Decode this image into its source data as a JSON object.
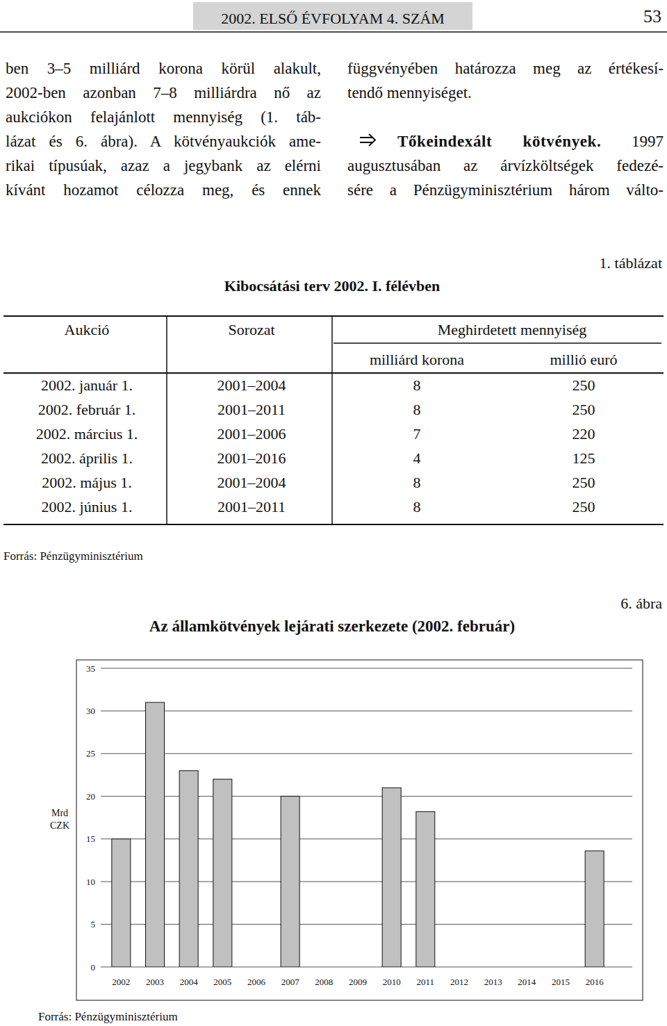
{
  "header": {
    "journal": "2002. ELSŐ ÉVFOLYAM 4. SZÁM",
    "page": "53"
  },
  "left_column": [
    "ben 3–5 milliárd korona körül alakult,",
    "2002-ben azonban 7–8 milliárdra nő az",
    "aukciókon felajánlott mennyiség (1. táb-",
    "lázat és 6. ábra). A kötvényaukciók ame-",
    "rikai típusúak, azaz a jegybank az elérni",
    "kívánt hozamot célozza meg, és ennek"
  ],
  "right_column": {
    "paragraph_1": [
      "függvényében határozza meg az értékesí-",
      "tendő mennyiséget."
    ],
    "paragraph_2": {
      "heading": "Tőkeindexált kötvények.",
      "lines": [
        "1997",
        "augusztusában az árvízköltségek fedezé-",
        "sére a Pénzügyminisztérium három válto-"
      ]
    }
  },
  "table": {
    "label": "1. táblázat",
    "title": "Kibocsátási terv 2002. I. félévben",
    "columns": [
      "Aukció",
      "Sorozat",
      "Meghirdetett mennyiség"
    ],
    "subcolumns": [
      "milliárd korona",
      "millió euró"
    ],
    "rows": [
      [
        "2002. január 1.",
        "2001–2004",
        8,
        250
      ],
      [
        "2002. február 1.",
        "2001–2011",
        8,
        250
      ],
      [
        "2002. március 1.",
        "2001–2006",
        7,
        220
      ],
      [
        "2002. április 1.",
        "2001–2016",
        4,
        125
      ],
      [
        "2002. május 1.",
        "2001–2004",
        8,
        250
      ],
      [
        "2002. június 1.",
        "2001–2011",
        8,
        250
      ]
    ],
    "source": "Forrás: Pénzügyminisztérium"
  },
  "figure": {
    "label": "6. ábra",
    "source": "Forrás: Pénzügyminisztérium"
  },
  "chart_data": {
    "type": "bar",
    "title": "Az államkötvények lejárati szerkezete (2002. február)",
    "y_label": "Mrd CZK",
    "categories": [
      "2002",
      "2003",
      "2004",
      "2005",
      "2006",
      "2007",
      "2008",
      "2009",
      "2010",
      "2011",
      "2012",
      "2013",
      "2014",
      "2015",
      "2016"
    ],
    "values": [
      15,
      31,
      23,
      22,
      0,
      20,
      0,
      0,
      21,
      18.2,
      0,
      0,
      0,
      0,
      13.6
    ],
    "color": "#c0c0c0",
    "ylim": [
      0,
      35
    ],
    "yticks": [
      0,
      5,
      10,
      15,
      20,
      25,
      30,
      35
    ],
    "grid": true
  }
}
